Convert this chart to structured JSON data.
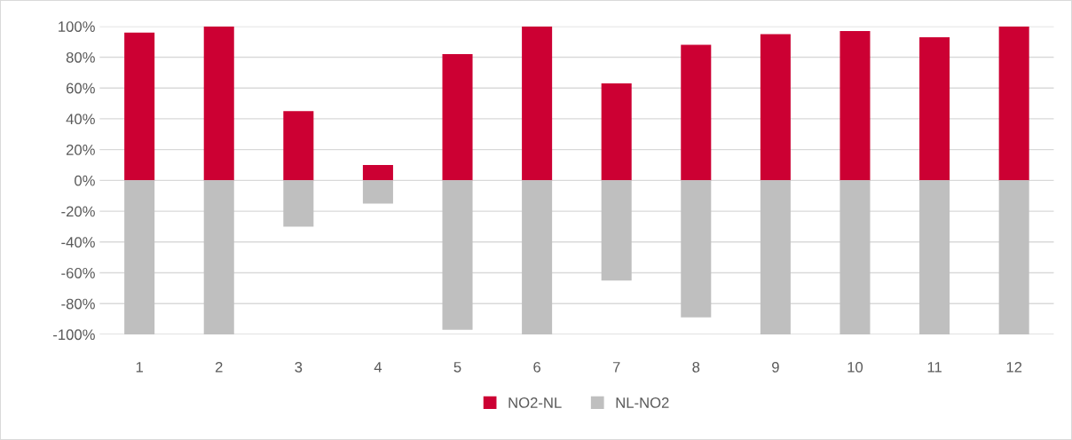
{
  "chart_data": {
    "type": "bar",
    "stacked": true,
    "categories": [
      "1",
      "2",
      "3",
      "4",
      "5",
      "6",
      "7",
      "8",
      "9",
      "10",
      "11",
      "12"
    ],
    "series": [
      {
        "name": "NO2-NL",
        "color": "#cc0033",
        "values": [
          96,
          100,
          45,
          10,
          82,
          100,
          63,
          88,
          95,
          97,
          93,
          100
        ]
      },
      {
        "name": "NL-NO2",
        "color": "#bfbfbf",
        "values": [
          -100,
          -100,
          -30,
          -15,
          -97,
          -100,
          -65,
          -89,
          -100,
          -100,
          -100,
          -100
        ]
      }
    ],
    "ylim": [
      -100,
      100
    ],
    "yticks": [
      {
        "value": -100,
        "label": "-100%"
      },
      {
        "value": -80,
        "label": "-80%"
      },
      {
        "value": -60,
        "label": "-60%"
      },
      {
        "value": -40,
        "label": "-40%"
      },
      {
        "value": -20,
        "label": "-20%"
      },
      {
        "value": 0,
        "label": "0%"
      },
      {
        "value": 20,
        "label": "20%"
      },
      {
        "value": 40,
        "label": "40%"
      },
      {
        "value": 60,
        "label": "60%"
      },
      {
        "value": 80,
        "label": "80%"
      },
      {
        "value": 100,
        "label": "100%"
      }
    ],
    "grid": "y",
    "legend": "bottom"
  }
}
